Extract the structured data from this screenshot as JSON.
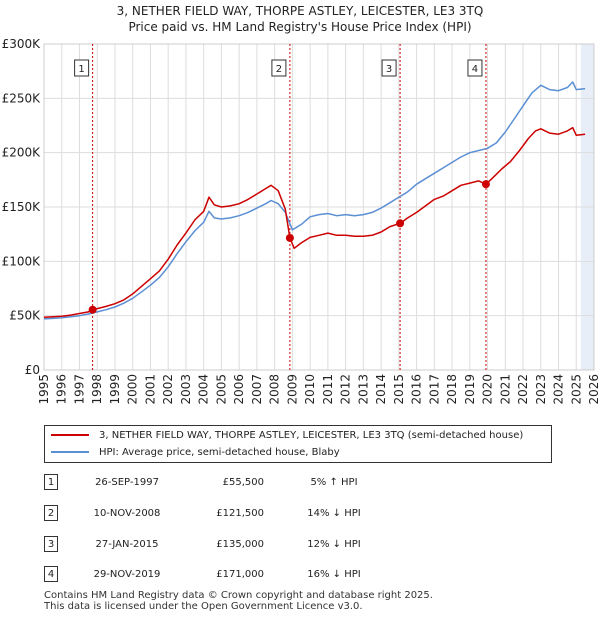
{
  "title": "3, NETHER FIELD WAY, THORPE ASTLEY, LEICESTER, LE3 3TQ",
  "subtitle": "Price paid vs. HM Land Registry's House Price Index (HPI)",
  "colors": {
    "property": "#cc0000",
    "hpi": "#5b8fd4",
    "grid": "#dddddd",
    "marker_line": "#cc0000",
    "shade": "#e8eef8"
  },
  "chart_data": {
    "type": "line",
    "title": "3, NETHER FIELD WAY, THORPE ASTLEY, LEICESTER, LE3 3TQ",
    "subtitle": "Price paid vs. HM Land Registry's House Price Index (HPI)",
    "xlabel": "",
    "ylabel": "",
    "xlim": [
      1995,
      2026
    ],
    "ylim": [
      0,
      300000
    ],
    "x_ticks": [
      "1995",
      "1996",
      "1997",
      "1998",
      "1999",
      "2000",
      "2001",
      "2002",
      "2003",
      "2004",
      "2005",
      "2006",
      "2007",
      "2008",
      "2009",
      "2010",
      "2011",
      "2012",
      "2013",
      "2014",
      "2015",
      "2016",
      "2017",
      "2018",
      "2019",
      "2020",
      "2021",
      "2022",
      "2023",
      "2024",
      "2025",
      "2026"
    ],
    "y_ticks": [
      {
        "value": 0,
        "label": "£0"
      },
      {
        "value": 50000,
        "label": "£50K"
      },
      {
        "value": 100000,
        "label": "£100K"
      },
      {
        "value": 150000,
        "label": "£150K"
      },
      {
        "value": 200000,
        "label": "£200K"
      },
      {
        "value": 250000,
        "label": "£250K"
      },
      {
        "value": 300000,
        "label": "£300K"
      }
    ],
    "grid": true,
    "shaded_future_from": 2025.25,
    "series": [
      {
        "name": "3, NETHER FIELD WAY, THORPE ASTLEY, LEICESTER, LE3 3TQ (semi-detached house)",
        "color": "#cc0000",
        "points": [
          [
            1995.0,
            48500
          ],
          [
            1995.5,
            49000
          ],
          [
            1996.0,
            49500
          ],
          [
            1996.5,
            50500
          ],
          [
            1997.0,
            52000
          ],
          [
            1997.5,
            53500
          ],
          [
            1997.74,
            55500
          ],
          [
            1998.0,
            56500
          ],
          [
            1998.5,
            58500
          ],
          [
            1999.0,
            61000
          ],
          [
            1999.5,
            64500
          ],
          [
            2000.0,
            70000
          ],
          [
            2000.5,
            77000
          ],
          [
            2001.0,
            84000
          ],
          [
            2001.5,
            91000
          ],
          [
            2002.0,
            102000
          ],
          [
            2002.5,
            115000
          ],
          [
            2003.0,
            126000
          ],
          [
            2003.5,
            138000
          ],
          [
            2004.0,
            146000
          ],
          [
            2004.3,
            159000
          ],
          [
            2004.6,
            152000
          ],
          [
            2005.0,
            150000
          ],
          [
            2005.5,
            151000
          ],
          [
            2006.0,
            153000
          ],
          [
            2006.5,
            157000
          ],
          [
            2007.0,
            162000
          ],
          [
            2007.5,
            167000
          ],
          [
            2007.8,
            170000
          ],
          [
            2008.2,
            165000
          ],
          [
            2008.6,
            148000
          ],
          [
            2008.86,
            121500
          ],
          [
            2009.1,
            112000
          ],
          [
            2009.5,
            117000
          ],
          [
            2010.0,
            122000
          ],
          [
            2010.5,
            124000
          ],
          [
            2011.0,
            126000
          ],
          [
            2011.5,
            124000
          ],
          [
            2012.0,
            124000
          ],
          [
            2012.5,
            123000
          ],
          [
            2013.0,
            123000
          ],
          [
            2013.5,
            124000
          ],
          [
            2014.0,
            127000
          ],
          [
            2014.5,
            132000
          ],
          [
            2015.07,
            135000
          ],
          [
            2015.5,
            140000
          ],
          [
            2016.0,
            145000
          ],
          [
            2016.5,
            151000
          ],
          [
            2017.0,
            157000
          ],
          [
            2017.5,
            160000
          ],
          [
            2018.0,
            165000
          ],
          [
            2018.5,
            170000
          ],
          [
            2019.0,
            172000
          ],
          [
            2019.5,
            174000
          ],
          [
            2019.91,
            171000
          ],
          [
            2020.3,
            177000
          ],
          [
            2020.8,
            185000
          ],
          [
            2021.3,
            192000
          ],
          [
            2021.8,
            202000
          ],
          [
            2022.3,
            213000
          ],
          [
            2022.7,
            220000
          ],
          [
            2023.0,
            222000
          ],
          [
            2023.5,
            218000
          ],
          [
            2024.0,
            217000
          ],
          [
            2024.5,
            220000
          ],
          [
            2024.8,
            223000
          ],
          [
            2025.0,
            216000
          ],
          [
            2025.5,
            217000
          ]
        ]
      },
      {
        "name": "HPI: Average price, semi-detached house, Blaby",
        "color": "#5b8fd4",
        "points": [
          [
            1995.0,
            47000
          ],
          [
            1995.5,
            47500
          ],
          [
            1996.0,
            48000
          ],
          [
            1996.5,
            49000
          ],
          [
            1997.0,
            50000
          ],
          [
            1997.5,
            51500
          ],
          [
            1998.0,
            53500
          ],
          [
            1998.5,
            55500
          ],
          [
            1999.0,
            58000
          ],
          [
            1999.5,
            61500
          ],
          [
            2000.0,
            66000
          ],
          [
            2000.5,
            72000
          ],
          [
            2001.0,
            78000
          ],
          [
            2001.5,
            85000
          ],
          [
            2002.0,
            95000
          ],
          [
            2002.5,
            107000
          ],
          [
            2003.0,
            118000
          ],
          [
            2003.5,
            128000
          ],
          [
            2004.0,
            136000
          ],
          [
            2004.3,
            146000
          ],
          [
            2004.6,
            140000
          ],
          [
            2005.0,
            139000
          ],
          [
            2005.5,
            140000
          ],
          [
            2006.0,
            142000
          ],
          [
            2006.5,
            145000
          ],
          [
            2007.0,
            149000
          ],
          [
            2007.5,
            153000
          ],
          [
            2007.8,
            156000
          ],
          [
            2008.2,
            153000
          ],
          [
            2008.6,
            145000
          ],
          [
            2009.0,
            129000
          ],
          [
            2009.5,
            134000
          ],
          [
            2010.0,
            141000
          ],
          [
            2010.5,
            143000
          ],
          [
            2011.0,
            144000
          ],
          [
            2011.5,
            142000
          ],
          [
            2012.0,
            143000
          ],
          [
            2012.5,
            142000
          ],
          [
            2013.0,
            143000
          ],
          [
            2013.5,
            145000
          ],
          [
            2014.0,
            149000
          ],
          [
            2014.5,
            154000
          ],
          [
            2015.0,
            159000
          ],
          [
            2015.5,
            164000
          ],
          [
            2016.0,
            171000
          ],
          [
            2016.5,
            176000
          ],
          [
            2017.0,
            181000
          ],
          [
            2017.5,
            186000
          ],
          [
            2018.0,
            191000
          ],
          [
            2018.5,
            196000
          ],
          [
            2019.0,
            200000
          ],
          [
            2019.5,
            202000
          ],
          [
            2020.0,
            204000
          ],
          [
            2020.5,
            209000
          ],
          [
            2021.0,
            219000
          ],
          [
            2021.5,
            231000
          ],
          [
            2022.0,
            243000
          ],
          [
            2022.5,
            255000
          ],
          [
            2023.0,
            262000
          ],
          [
            2023.5,
            258000
          ],
          [
            2024.0,
            257000
          ],
          [
            2024.5,
            260000
          ],
          [
            2024.8,
            265000
          ],
          [
            2025.0,
            258000
          ],
          [
            2025.5,
            259000
          ]
        ]
      }
    ],
    "sales": [
      {
        "id": "1",
        "x": 1997.74,
        "price": 55500
      },
      {
        "id": "2",
        "x": 2008.86,
        "price": 121500
      },
      {
        "id": "3",
        "x": 2015.07,
        "price": 135000
      },
      {
        "id": "4",
        "x": 2019.91,
        "price": 171000
      }
    ]
  },
  "legend": {
    "property": "3, NETHER FIELD WAY, THORPE ASTLEY, LEICESTER, LE3 3TQ (semi-detached house)",
    "hpi": "HPI: Average price, semi-detached house, Blaby"
  },
  "sales_table": [
    {
      "num": "1",
      "date": "26-SEP-1997",
      "price": "£55,500",
      "hpi": "5% ↑ HPI"
    },
    {
      "num": "2",
      "date": "10-NOV-2008",
      "price": "£121,500",
      "hpi": "14% ↓ HPI"
    },
    {
      "num": "3",
      "date": "27-JAN-2015",
      "price": "£135,000",
      "hpi": "12% ↓ HPI"
    },
    {
      "num": "4",
      "date": "29-NOV-2019",
      "price": "£171,000",
      "hpi": "16% ↓ HPI"
    }
  ],
  "footer": {
    "line1": "Contains HM Land Registry data © Crown copyright and database right 2025.",
    "line2": "This data is licensed under the Open Government Licence v3.0."
  }
}
